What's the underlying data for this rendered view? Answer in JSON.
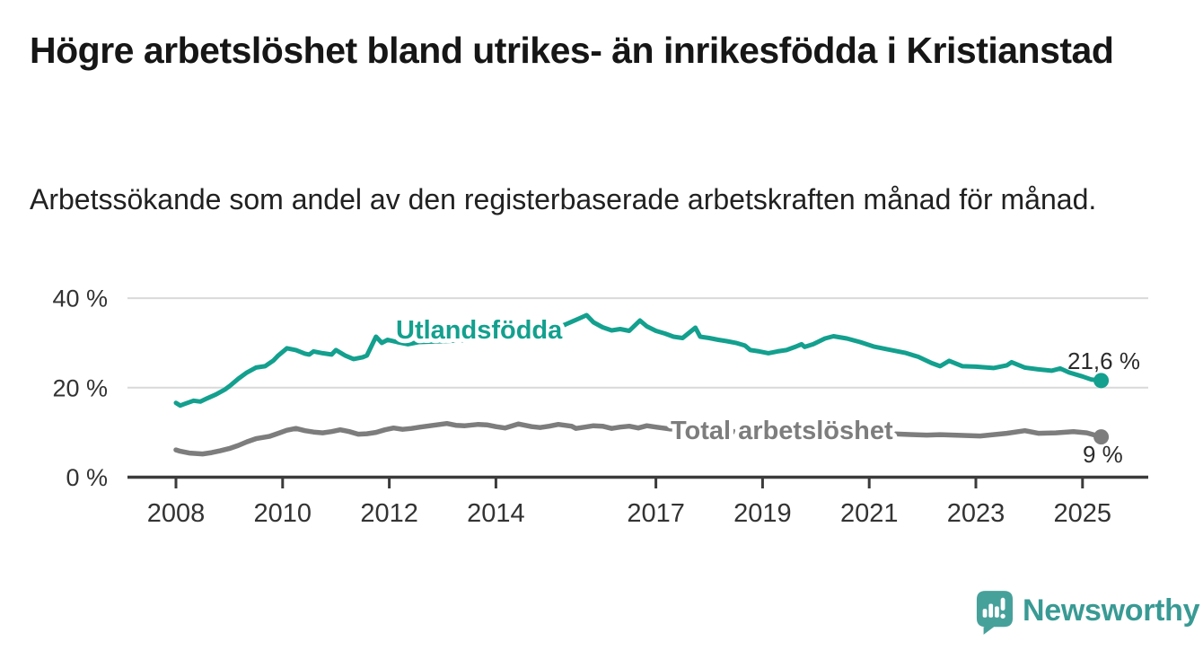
{
  "header": {
    "title": "Högre arbetslöshet bland utrikes- än inrikesfödda i Kristianstad",
    "subtitle": "Arbetssökande som andel av den registerbaserade arbetskraften månad för månad."
  },
  "footer": {
    "brand": "Newsworthy",
    "logo_icon": "newsworthy-speech-bubble-bar-chart-icon"
  },
  "colors": {
    "series_teal": "#13a08e",
    "series_gray": "#7d7d7d",
    "grid": "#d9d9d9",
    "axis_line": "#3b3b3b",
    "axis_text": "#333333",
    "value_label_text": "#2b2b2b",
    "logo_bubble": "#47a19b",
    "logo_text": "#399a94",
    "background": "#ffffff"
  },
  "chart_data": {
    "type": "line",
    "title": "Högre arbetslöshet bland utrikes- än inrikesfödda i Kristianstad",
    "subtitle": "Arbetssökande som andel av den registerbaserade arbetskraften månad för månad.",
    "unit": "%",
    "grid": "horizontal gridlines at 20 % and 40 %, baseline axis at 0 %",
    "legend": "inline labels on lines, value labels at line ends",
    "x_axis": {
      "ticks": [
        2008,
        2010,
        2012,
        2014,
        2017,
        2019,
        2021,
        2023,
        2025
      ],
      "tick_labels": [
        "2008",
        "2010",
        "2012",
        "2014",
        "2017",
        "2019",
        "2021",
        "2023",
        "2025"
      ],
      "range": [
        2007.9,
        2026.2
      ]
    },
    "y_axis": {
      "ticks": [
        {
          "value": 40,
          "label": "40 %"
        },
        {
          "value": 20,
          "label": "20 %"
        },
        {
          "value": 0,
          "label": "0 %"
        }
      ],
      "range": [
        0,
        42
      ]
    },
    "series": [
      {
        "name": "Utlandsfödda",
        "color_key": "series_teal",
        "end_label": "21,6 %",
        "end_value": 21.6,
        "points": [
          [
            2008.0,
            16.6
          ],
          [
            2008.08,
            16.0
          ],
          [
            2008.17,
            16.4
          ],
          [
            2008.33,
            17.1
          ],
          [
            2008.46,
            16.9
          ],
          [
            2008.58,
            17.6
          ],
          [
            2008.75,
            18.5
          ],
          [
            2008.92,
            19.6
          ],
          [
            2009.0,
            20.3
          ],
          [
            2009.17,
            22.0
          ],
          [
            2009.33,
            23.4
          ],
          [
            2009.5,
            24.5
          ],
          [
            2009.67,
            24.8
          ],
          [
            2009.83,
            26.1
          ],
          [
            2009.92,
            27.2
          ],
          [
            2010.08,
            28.8
          ],
          [
            2010.25,
            28.4
          ],
          [
            2010.42,
            27.6
          ],
          [
            2010.5,
            27.4
          ],
          [
            2010.58,
            28.1
          ],
          [
            2010.75,
            27.7
          ],
          [
            2010.92,
            27.4
          ],
          [
            2011.0,
            28.4
          ],
          [
            2011.17,
            27.2
          ],
          [
            2011.33,
            26.4
          ],
          [
            2011.5,
            26.8
          ],
          [
            2011.58,
            27.2
          ],
          [
            2011.75,
            31.4
          ],
          [
            2011.86,
            30.0
          ],
          [
            2011.97,
            30.7
          ],
          [
            2012.15,
            30.2
          ],
          [
            2012.35,
            29.7
          ],
          [
            2012.55,
            30.2
          ],
          [
            2013.0,
            30.4
          ],
          [
            2013.5,
            30.7
          ],
          [
            2014.0,
            31.1
          ],
          [
            2014.5,
            31.7
          ],
          [
            2015.0,
            32.7
          ],
          [
            2015.3,
            34.1
          ],
          [
            2015.55,
            35.4
          ],
          [
            2015.7,
            36.2
          ],
          [
            2015.83,
            34.6
          ],
          [
            2016.0,
            33.5
          ],
          [
            2016.17,
            32.8
          ],
          [
            2016.33,
            33.1
          ],
          [
            2016.5,
            32.7
          ],
          [
            2016.7,
            35.0
          ],
          [
            2016.83,
            33.7
          ],
          [
            2017.0,
            32.7
          ],
          [
            2017.17,
            32.1
          ],
          [
            2017.33,
            31.4
          ],
          [
            2017.5,
            31.1
          ],
          [
            2017.74,
            33.4
          ],
          [
            2017.83,
            31.4
          ],
          [
            2018.0,
            31.1
          ],
          [
            2018.17,
            30.7
          ],
          [
            2018.33,
            30.4
          ],
          [
            2018.5,
            30.0
          ],
          [
            2018.67,
            29.4
          ],
          [
            2018.77,
            28.4
          ],
          [
            2018.94,
            28.1
          ],
          [
            2019.11,
            27.7
          ],
          [
            2019.28,
            28.1
          ],
          [
            2019.45,
            28.4
          ],
          [
            2019.61,
            29.1
          ],
          [
            2019.73,
            29.7
          ],
          [
            2019.79,
            29.1
          ],
          [
            2019.95,
            29.7
          ],
          [
            2020.17,
            31.0
          ],
          [
            2020.33,
            31.5
          ],
          [
            2020.58,
            31.0
          ],
          [
            2020.83,
            30.2
          ],
          [
            2021.08,
            29.2
          ],
          [
            2021.33,
            28.6
          ],
          [
            2021.67,
            27.8
          ],
          [
            2021.92,
            26.9
          ],
          [
            2022.17,
            25.5
          ],
          [
            2022.33,
            24.8
          ],
          [
            2022.5,
            26.0
          ],
          [
            2022.75,
            24.8
          ],
          [
            2023.0,
            24.7
          ],
          [
            2023.33,
            24.4
          ],
          [
            2023.58,
            25.0
          ],
          [
            2023.67,
            25.7
          ],
          [
            2023.92,
            24.5
          ],
          [
            2024.17,
            24.1
          ],
          [
            2024.42,
            23.8
          ],
          [
            2024.58,
            24.3
          ],
          [
            2024.75,
            23.4
          ],
          [
            2025.0,
            22.5
          ],
          [
            2025.17,
            21.8
          ],
          [
            2025.35,
            21.6
          ]
        ]
      },
      {
        "name": "Total arbetslöshet",
        "color_key": "series_gray",
        "end_label": "9 %",
        "end_value": 9,
        "points": [
          [
            2008.0,
            6.1
          ],
          [
            2008.08,
            5.8
          ],
          [
            2008.25,
            5.4
          ],
          [
            2008.5,
            5.2
          ],
          [
            2008.67,
            5.5
          ],
          [
            2008.83,
            5.9
          ],
          [
            2009.0,
            6.4
          ],
          [
            2009.17,
            7.1
          ],
          [
            2009.33,
            7.9
          ],
          [
            2009.5,
            8.6
          ],
          [
            2009.75,
            9.1
          ],
          [
            2009.92,
            9.8
          ],
          [
            2010.08,
            10.5
          ],
          [
            2010.25,
            10.9
          ],
          [
            2010.42,
            10.4
          ],
          [
            2010.58,
            10.1
          ],
          [
            2010.75,
            9.9
          ],
          [
            2010.92,
            10.2
          ],
          [
            2011.08,
            10.6
          ],
          [
            2011.25,
            10.2
          ],
          [
            2011.42,
            9.6
          ],
          [
            2011.58,
            9.7
          ],
          [
            2011.75,
            10.0
          ],
          [
            2011.92,
            10.6
          ],
          [
            2012.08,
            11.0
          ],
          [
            2012.25,
            10.7
          ],
          [
            2012.42,
            10.9
          ],
          [
            2012.58,
            11.2
          ],
          [
            2012.83,
            11.6
          ],
          [
            2013.08,
            12.0
          ],
          [
            2013.25,
            11.6
          ],
          [
            2013.42,
            11.5
          ],
          [
            2013.67,
            11.8
          ],
          [
            2013.83,
            11.7
          ],
          [
            2014.0,
            11.3
          ],
          [
            2014.17,
            11.0
          ],
          [
            2014.42,
            11.9
          ],
          [
            2014.67,
            11.3
          ],
          [
            2014.83,
            11.1
          ],
          [
            2015.0,
            11.4
          ],
          [
            2015.17,
            11.8
          ],
          [
            2015.42,
            11.4
          ],
          [
            2015.5,
            10.9
          ],
          [
            2015.67,
            11.2
          ],
          [
            2015.83,
            11.5
          ],
          [
            2016.0,
            11.4
          ],
          [
            2016.17,
            10.9
          ],
          [
            2016.33,
            11.2
          ],
          [
            2016.5,
            11.4
          ],
          [
            2016.67,
            11.0
          ],
          [
            2016.83,
            11.5
          ],
          [
            2017.0,
            11.2
          ],
          [
            2017.25,
            10.8
          ],
          [
            2018.0,
            10.4
          ],
          [
            2019.0,
            10.0
          ],
          [
            2020.0,
            10.2
          ],
          [
            2021.0,
            9.9
          ],
          [
            2021.83,
            9.5
          ],
          [
            2022.08,
            9.4
          ],
          [
            2022.33,
            9.5
          ],
          [
            2022.58,
            9.4
          ],
          [
            2022.83,
            9.3
          ],
          [
            2023.08,
            9.2
          ],
          [
            2023.33,
            9.5
          ],
          [
            2023.58,
            9.8
          ],
          [
            2023.92,
            10.4
          ],
          [
            2024.17,
            9.8
          ],
          [
            2024.5,
            9.9
          ],
          [
            2024.83,
            10.2
          ],
          [
            2025.08,
            9.9
          ],
          [
            2025.35,
            9.0
          ]
        ]
      }
    ]
  }
}
